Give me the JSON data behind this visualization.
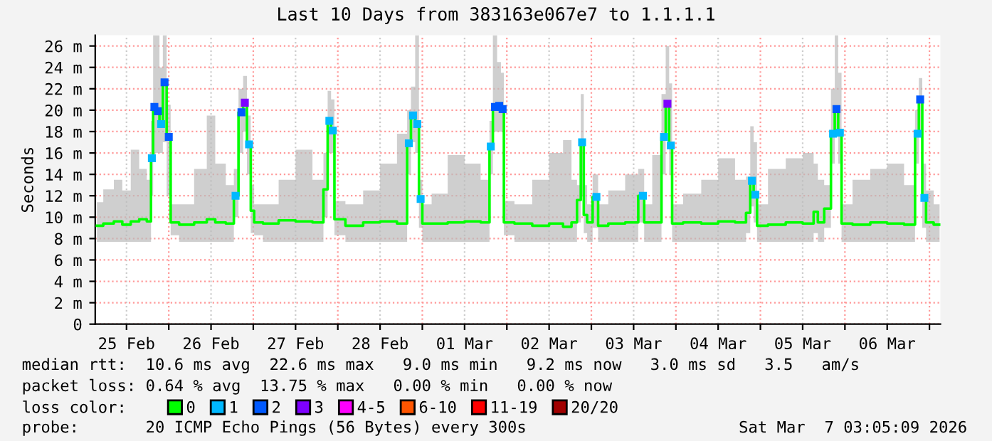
{
  "chart_data": {
    "type": "line",
    "title": "Last 10 Days from 383163e067e7 to 1.1.1.1",
    "ylabel": "Seconds",
    "xlim": [
      "2026-02-25T03:07",
      "2026-03-07T03:07"
    ],
    "ylim": [
      0,
      27
    ],
    "xticks": [
      {
        "value": "2026-02-25T12:00",
        "label": "25 Feb"
      },
      {
        "value": "2026-02-26",
        "label": null
      },
      {
        "value": "2026-02-26T12:00",
        "label": "26 Feb"
      },
      {
        "value": "2026-02-27",
        "label": null
      },
      {
        "value": "2026-02-27T12:00",
        "label": "27 Feb"
      },
      {
        "value": "2026-02-28",
        "label": null
      },
      {
        "value": "2026-02-28T12:00",
        "label": "28 Feb"
      },
      {
        "value": "2026-03-01",
        "label": null
      },
      {
        "value": "2026-03-01T12:00",
        "label": "01 Mar"
      },
      {
        "value": "2026-03-02",
        "label": null
      },
      {
        "value": "2026-03-02T12:00",
        "label": "02 Mar"
      },
      {
        "value": "2026-03-03",
        "label": null
      },
      {
        "value": "2026-03-03T12:00",
        "label": "03 Mar"
      },
      {
        "value": "2026-03-04",
        "label": null
      },
      {
        "value": "2026-03-04T12:00",
        "label": "04 Mar"
      },
      {
        "value": "2026-03-05",
        "label": null
      },
      {
        "value": "2026-03-05T12:00",
        "label": "05 Mar"
      },
      {
        "value": "2026-03-06",
        "label": null
      },
      {
        "value": "2026-03-06T12:00",
        "label": "06 Mar"
      },
      {
        "value": "2026-03-07",
        "label": null
      }
    ],
    "yticks": [
      {
        "value": 0,
        "label": "0"
      },
      {
        "value": 2,
        "label": "2 m"
      },
      {
        "value": 4,
        "label": "4 m"
      },
      {
        "value": 6,
        "label": "6 m"
      },
      {
        "value": 8,
        "label": "8 m"
      },
      {
        "value": 10,
        "label": "10 m"
      },
      {
        "value": 12,
        "label": "12 m"
      },
      {
        "value": 14,
        "label": "14 m"
      },
      {
        "value": 16,
        "label": "16 m"
      },
      {
        "value": 18,
        "label": "18 m"
      },
      {
        "value": 20,
        "label": "20 m"
      },
      {
        "value": 22,
        "label": "22 m"
      },
      {
        "value": 24,
        "label": "24 m"
      },
      {
        "value": 26,
        "label": "26 m"
      }
    ],
    "grid": true,
    "legend": "bottom",
    "marker": "none",
    "line_style": "solid",
    "series": [
      {
        "name": "0",
        "color": "#00ff00",
        "x": [
          "2026-02-25T03:36",
          "2026-02-25T07:12",
          "2026-02-25T09:36",
          "2026-02-25T12:00",
          "2026-02-25T14:24",
          "2026-02-25T16:48",
          "2026-02-25T18:43",
          "2026-02-25T19:12",
          "2026-02-25T19:55",
          "2026-02-25T20:53",
          "2026-02-25T21:50",
          "2026-02-25T22:48",
          "2026-02-26T00:00",
          "2026-02-26T01:05",
          "2026-02-26T04:48",
          "2026-02-26T09:36",
          "2026-02-26T12:00",
          "2026-02-26T14:24",
          "2026-02-26T18:00",
          "2026-02-26T18:58",
          "2026-02-26T20:38",
          "2026-02-26T21:36",
          "2026-02-26T22:48",
          "2026-02-26T23:46",
          "2026-02-27T00:43",
          "2026-02-27T04:48",
          "2026-02-27T09:36",
          "2026-02-27T14:24",
          "2026-02-27T19:12",
          "2026-02-27T20:38",
          "2026-02-27T21:36",
          "2026-02-27T22:34",
          "2026-02-27T23:31",
          "2026-02-28T04:48",
          "2026-02-28T09:36",
          "2026-02-28T14:24",
          "2026-02-28T19:12",
          "2026-02-28T20:10",
          "2026-02-28T21:22",
          "2026-02-28T22:34",
          "2026-02-28T23:31",
          "2026-03-01T00:29",
          "2026-03-01T04:48",
          "2026-03-01T09:36",
          "2026-03-01T14:24",
          "2026-03-01T18:43",
          "2026-03-01T19:26",
          "2026-03-01T20:38",
          "2026-03-01T21:50",
          "2026-03-01T22:48",
          "2026-03-01T23:31",
          "2026-03-02T04:48",
          "2026-03-02T09:36",
          "2026-03-02T14:24",
          "2026-03-02T17:31",
          "2026-03-02T19:12",
          "2026-03-02T20:38",
          "2026-03-02T21:22",
          "2026-03-02T22:19",
          "2026-03-02T23:17",
          "2026-03-03T01:26",
          "2026-03-03T02:24",
          "2026-03-03T07:12",
          "2026-03-03T12:00",
          "2026-03-03T14:38",
          "2026-03-03T15:22",
          "2026-03-03T19:12",
          "2026-03-03T20:38",
          "2026-03-03T21:36",
          "2026-03-03T22:34",
          "2026-03-03T23:17",
          "2026-03-04T04:48",
          "2026-03-04T09:36",
          "2026-03-04T14:24",
          "2026-03-04T19:12",
          "2026-03-04T20:38",
          "2026-03-04T21:36",
          "2026-03-04T22:34",
          "2026-03-04T23:31",
          "2026-03-05T04:48",
          "2026-03-05T09:36",
          "2026-03-05T14:24",
          "2026-03-05T15:50",
          "2026-03-05T16:48",
          "2026-03-05T19:26",
          "2026-03-05T20:38",
          "2026-03-05T21:36",
          "2026-03-05T22:34",
          "2026-03-05T23:31",
          "2026-03-06T04:48",
          "2026-03-06T09:36",
          "2026-03-06T14:24",
          "2026-03-06T19:12",
          "2026-03-06T20:38",
          "2026-03-06T21:22",
          "2026-03-06T22:34",
          "2026-03-06T23:31",
          "2026-03-07T02:53"
        ],
        "values": [
          9.2,
          9.4,
          9.6,
          9.3,
          9.6,
          9.8,
          9.6,
          15.5,
          20.3,
          19.9,
          18.7,
          22.6,
          17.5,
          9.5,
          9.3,
          9.5,
          9.8,
          9.5,
          9.4,
          12.0,
          19.8,
          20.7,
          16.8,
          10.6,
          9.5,
          9.4,
          9.7,
          9.6,
          9.5,
          12.6,
          19.0,
          18.1,
          9.8,
          9.2,
          9.5,
          9.6,
          9.4,
          16.9,
          19.5,
          18.7,
          11.7,
          9.4,
          9.4,
          9.5,
          9.6,
          9.5,
          16.6,
          20.3,
          20.4,
          20.1,
          9.5,
          9.4,
          9.2,
          9.4,
          9.1,
          9.5,
          11.6,
          17.0,
          10.2,
          9.5,
          11.9,
          9.2,
          9.4,
          9.5,
          12.0,
          9.5,
          9.5,
          17.5,
          20.6,
          16.7,
          9.4,
          9.5,
          9.4,
          9.6,
          9.5,
          10.4,
          13.4,
          12.1,
          9.2,
          9.3,
          9.5,
          9.4,
          10.5,
          9.5,
          10.8,
          17.8,
          20.1,
          17.9,
          9.4,
          9.3,
          9.5,
          9.4,
          9.3,
          17.8,
          21.0,
          11.8,
          9.5,
          9.3
        ],
        "lower": [
          7.7,
          7.7,
          7.7,
          7.7,
          7.7,
          7.7,
          7.7,
          12,
          16,
          16,
          16,
          17,
          12,
          8.3,
          7.7,
          7.7,
          7.7,
          7.7,
          7.7,
          10,
          16,
          18,
          14,
          8.5,
          8.3,
          7.7,
          7.7,
          7.7,
          7.7,
          10,
          16,
          16,
          8.3,
          7.7,
          7.7,
          7.7,
          7.7,
          14,
          17,
          16,
          9,
          7.7,
          7.7,
          7.7,
          7.7,
          7.7,
          14,
          18,
          18,
          18,
          8.3,
          7.7,
          7.7,
          7.7,
          7.7,
          7.7,
          9.5,
          12,
          8.5,
          7.7,
          9,
          7.7,
          7.7,
          7.7,
          9.5,
          7.7,
          7.7,
          14,
          18,
          14,
          7.7,
          7.7,
          7.7,
          7.7,
          7.7,
          8.5,
          11,
          9.5,
          7.7,
          7.7,
          7.7,
          7.7,
          8.5,
          7.7,
          9,
          15,
          18,
          15,
          7.7,
          7.7,
          7.7,
          7.7,
          7.7,
          15,
          18,
          9,
          7.7,
          7.7
        ],
        "upper": [
          11.4,
          12.6,
          13.5,
          12.5,
          16.3,
          14.5,
          13.5,
          19,
          27,
          27,
          24,
          27,
          20.5,
          11.2,
          11.2,
          14.5,
          19.5,
          15,
          13,
          14.5,
          22,
          23.2,
          19.5,
          13,
          11.2,
          11.2,
          13.5,
          16.3,
          13.5,
          16,
          21.8,
          21,
          11.5,
          11.2,
          12.5,
          15,
          17.8,
          20,
          22.2,
          27,
          13.5,
          11.2,
          12.2,
          15.8,
          15,
          13.5,
          19,
          27,
          24.5,
          23.5,
          11.5,
          11.2,
          13.5,
          16,
          17.2,
          13.5,
          13,
          21.5,
          13,
          11.2,
          14,
          11.2,
          12.5,
          14,
          14.5,
          11.2,
          15.8,
          21.5,
          26,
          22.5,
          11.2,
          12.2,
          13.5,
          15.5,
          13.5,
          13.8,
          18.5,
          17,
          11.2,
          14.5,
          15.5,
          16,
          15,
          13.5,
          13,
          22,
          27,
          23.5,
          11.2,
          13.5,
          14.5,
          15,
          13,
          20,
          23,
          15,
          12.5,
          11.2
        ]
      },
      {
        "name": "1",
        "color": "#00b8ff",
        "type": "scatter",
        "marker": "square",
        "x": [
          "2026-02-25T19:12",
          "2026-02-25T21:50",
          "2026-02-26T18:58",
          "2026-02-26T22:48",
          "2026-02-27T21:36",
          "2026-02-27T22:34",
          "2026-02-28T20:10",
          "2026-02-28T21:22",
          "2026-02-28T22:34",
          "2026-02-28T23:31",
          "2026-03-01T19:26",
          "2026-03-02T21:22",
          "2026-03-03T01:26",
          "2026-03-03T14:38",
          "2026-03-03T20:38",
          "2026-03-03T22:34",
          "2026-03-04T21:36",
          "2026-03-04T22:34",
          "2026-03-05T20:38",
          "2026-03-05T22:34",
          "2026-03-06T20:38",
          "2026-03-06T22:34"
        ],
        "values": [
          15.5,
          18.7,
          12.0,
          16.8,
          19.0,
          18.1,
          16.9,
          19.5,
          18.7,
          11.7,
          16.6,
          17.0,
          11.9,
          12.0,
          17.5,
          16.7,
          13.4,
          12.1,
          17.8,
          17.9,
          17.8,
          11.8
        ]
      },
      {
        "name": "2",
        "color": "#0059ff",
        "type": "scatter",
        "marker": "square",
        "x": [
          "2026-02-25T19:55",
          "2026-02-25T20:53",
          "2026-02-25T22:48",
          "2026-02-26T00:00",
          "2026-02-26T20:38",
          "2026-03-01T20:38",
          "2026-03-01T21:50",
          "2026-03-01T22:48",
          "2026-03-05T21:36",
          "2026-03-06T21:22"
        ],
        "values": [
          20.3,
          19.9,
          22.6,
          17.5,
          19.8,
          20.3,
          20.4,
          20.1,
          20.1,
          21.0
        ]
      },
      {
        "name": "3",
        "color": "#7e00ff",
        "type": "scatter",
        "marker": "square",
        "x": [
          "2026-02-26T21:36",
          "2026-03-03T21:36"
        ],
        "values": [
          20.7,
          20.6
        ]
      },
      {
        "name": "4-5",
        "color": "#ff00ff",
        "type": "scatter",
        "marker": "square"
      },
      {
        "name": "6-10",
        "color": "#ff5500",
        "type": "scatter",
        "marker": "square"
      },
      {
        "name": "11-19",
        "color": "#ff0000",
        "type": "scatter",
        "marker": "square"
      },
      {
        "name": "20/20",
        "color": "#a10000",
        "type": "scatter",
        "marker": "square"
      }
    ],
    "annotations": [
      "median rtt:  10.6 ms avg  22.6 ms max   9.0 ms min   9.2 ms now   3.0 ms sd   3.5   am/s",
      "packet loss: 0.64 % avg  13.75 % max   0.00 % min   0.00 % now",
      "loss color:",
      "probe:       20 ICMP Echo Pings (56 Bytes) every 300s",
      "Sat Mar  7 03:05:09 2026"
    ]
  }
}
